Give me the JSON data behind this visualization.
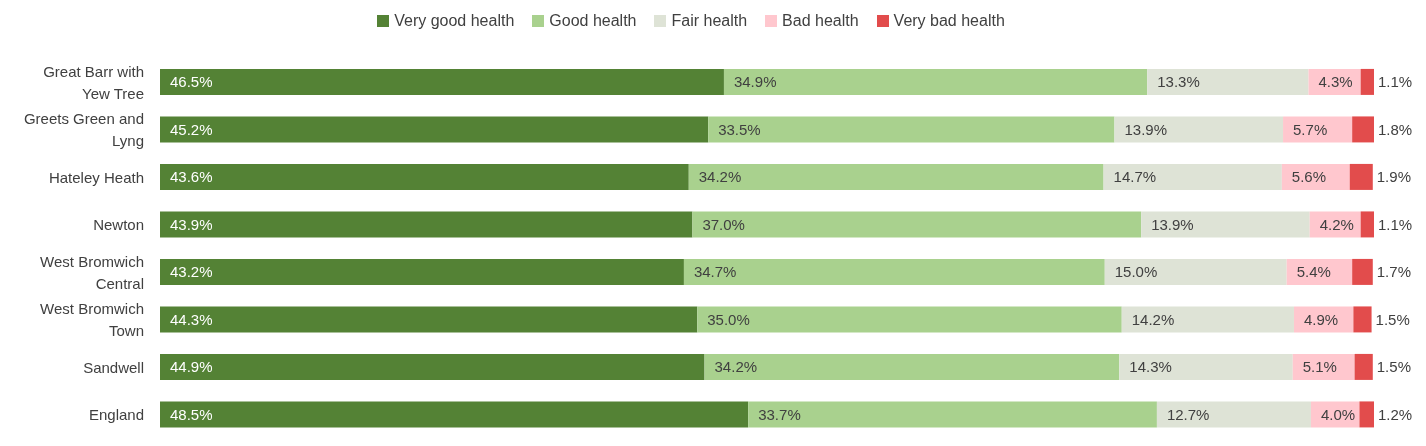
{
  "chart_data": {
    "type": "bar",
    "orientation": "horizontal",
    "stacked": true,
    "legend": "top",
    "grid": false,
    "categories": [
      "Great Barr with Yew Tree",
      "Greets Green and Lyng",
      "Hateley Heath",
      "Newton",
      "West Bromwich Central",
      "West Bromwich Town",
      "Sandwell",
      "England"
    ],
    "series": [
      {
        "name": "Very good health",
        "color": "#548235",
        "values": [
          46.5,
          45.2,
          43.6,
          43.9,
          43.2,
          44.3,
          44.9,
          48.5
        ],
        "value_labels": [
          "46.5%",
          "45.2%",
          "43.6%",
          "43.9%",
          "43.2%",
          "44.3%",
          "44.9%",
          "48.5%"
        ]
      },
      {
        "name": "Good health",
        "color": "#a9d18e",
        "values": [
          34.9,
          33.5,
          34.2,
          37.0,
          34.7,
          35.0,
          34.2,
          33.7
        ],
        "value_labels": [
          "34.9%",
          "33.5%",
          "34.2%",
          "37.0%",
          "34.7%",
          "35.0%",
          "34.2%",
          "33.7%"
        ]
      },
      {
        "name": "Fair health",
        "color": "#dee3d6",
        "values": [
          13.3,
          13.9,
          14.7,
          13.9,
          15.0,
          14.2,
          14.3,
          12.7
        ],
        "value_labels": [
          "13.3%",
          "13.9%",
          "14.7%",
          "13.9%",
          "15.0%",
          "14.2%",
          "14.3%",
          "12.7%"
        ]
      },
      {
        "name": "Bad health",
        "color": "#ffc7ce",
        "values": [
          4.3,
          5.7,
          5.6,
          4.2,
          5.4,
          4.9,
          5.1,
          4.0
        ],
        "value_labels": [
          "4.3%",
          "5.7%",
          "5.6%",
          "4.2%",
          "5.4%",
          "4.9%",
          "5.1%",
          "4.0%"
        ]
      },
      {
        "name": "Very bad health",
        "color": "#e24c4c",
        "values": [
          1.1,
          1.8,
          1.9,
          1.1,
          1.7,
          1.5,
          1.5,
          1.2
        ],
        "value_labels": [
          "1.1%",
          "1.8%",
          "1.9%",
          "1.1%",
          "1.7%",
          "1.5%",
          "1.5%",
          "1.2%"
        ]
      }
    ]
  }
}
